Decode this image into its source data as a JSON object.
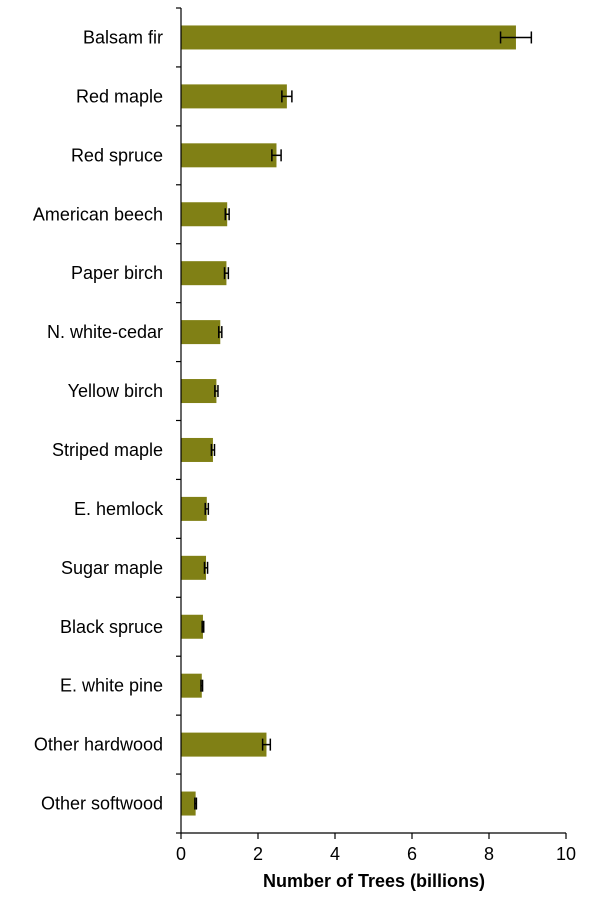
{
  "chart_data": {
    "type": "bar",
    "orientation": "horizontal",
    "categories": [
      "Balsam fir",
      "Red maple",
      "Red spruce",
      "American beech",
      "Paper birch",
      "N. white-cedar",
      "Yellow birch",
      "Striped maple",
      "E. hemlock",
      "Sugar maple",
      "Black spruce",
      "E. white pine",
      "Other hardwood",
      "Other softwood"
    ],
    "values": [
      8.7,
      2.75,
      2.48,
      1.2,
      1.18,
      1.02,
      0.92,
      0.83,
      0.67,
      0.65,
      0.57,
      0.54,
      2.22,
      0.38
    ],
    "error_low": [
      8.3,
      2.62,
      2.36,
      1.15,
      1.13,
      0.98,
      0.88,
      0.79,
      0.63,
      0.61,
      0.55,
      0.52,
      2.12,
      0.36
    ],
    "error_high": [
      9.1,
      2.88,
      2.6,
      1.25,
      1.23,
      1.06,
      0.96,
      0.87,
      0.71,
      0.69,
      0.59,
      0.56,
      2.32,
      0.4
    ],
    "xlabel": "Number of Trees (billions)",
    "ylabel": "",
    "title": "",
    "xlim": [
      0,
      10
    ],
    "xticks": [
      0,
      2,
      4,
      6,
      8,
      10
    ],
    "grid": false,
    "legend": "none",
    "bar_color": "#808015"
  }
}
